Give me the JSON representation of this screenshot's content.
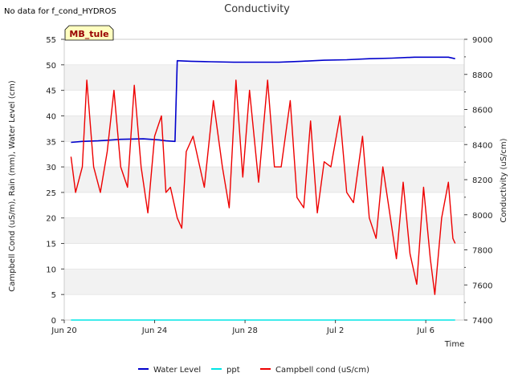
{
  "note": "No data for f_cond_HYDROS",
  "colors": {
    "band": "#f2f2f2",
    "grid": "#dddddd",
    "water_level": "#0000cc",
    "ppt": "#00e5e5",
    "campbell": "#ee0000",
    "badge_fill": "#ffffc0",
    "badge_text": "#990000"
  },
  "chart_data": {
    "type": "line",
    "title": "Conductivity",
    "badge": "MB_tule",
    "xlabel": "Time",
    "ylabel_left": "Campbell Cond (uS/m), Rain (mm), Water Level (cm)",
    "ylabel_right": "Conductivity (uS/cm)",
    "x_unit": "days since Jun 20",
    "xlim": [
      0,
      17.7
    ],
    "ylim_left": [
      0,
      55
    ],
    "ylim_right": [
      7400,
      9000
    ],
    "x_ticks": [
      {
        "value": 0,
        "label": "Jun 20"
      },
      {
        "value": 4,
        "label": "Jun 24"
      },
      {
        "value": 8,
        "label": "Jun 28"
      },
      {
        "value": 12,
        "label": "Jul 2"
      },
      {
        "value": 16,
        "label": "Jul 6"
      }
    ],
    "y_ticks_left": [
      0,
      5,
      10,
      15,
      20,
      25,
      30,
      35,
      40,
      45,
      50,
      55
    ],
    "y_ticks_right": [
      7400,
      7600,
      7800,
      8000,
      8200,
      8400,
      8600,
      8800,
      9000
    ],
    "series": [
      {
        "name": "Water Level",
        "axis": "left",
        "x": [
          0.3,
          0.8,
          1.5,
          2.5,
          3.5,
          4.2,
          4.5,
          4.9,
          5.0,
          5.6,
          6.5,
          7.5,
          8.5,
          9.5,
          10.5,
          11.5,
          12.5,
          13.5,
          14.5,
          15.5,
          16.3,
          17.0,
          17.3
        ],
        "values": [
          34.8,
          35.0,
          35.1,
          35.4,
          35.5,
          35.3,
          35.1,
          35.0,
          50.8,
          50.7,
          50.6,
          50.5,
          50.5,
          50.5,
          50.7,
          50.9,
          51.0,
          51.2,
          51.3,
          51.5,
          51.5,
          51.5,
          51.2
        ]
      },
      {
        "name": "ppt",
        "axis": "left",
        "x": [
          0.3,
          17.3
        ],
        "values": [
          0,
          0
        ]
      },
      {
        "name": "Campbell cond (uS/cm)",
        "axis": "left",
        "x": [
          0.3,
          0.5,
          0.8,
          1.0,
          1.3,
          1.6,
          1.9,
          2.2,
          2.5,
          2.8,
          3.1,
          3.4,
          3.7,
          4.0,
          4.3,
          4.5,
          4.7,
          5.0,
          5.2,
          5.4,
          5.7,
          6.0,
          6.2,
          6.6,
          7.0,
          7.3,
          7.6,
          7.9,
          8.2,
          8.6,
          9.0,
          9.3,
          9.6,
          10.0,
          10.3,
          10.6,
          10.9,
          11.2,
          11.5,
          11.8,
          12.2,
          12.5,
          12.8,
          13.2,
          13.5,
          13.8,
          14.1,
          14.4,
          14.7,
          15.0,
          15.3,
          15.6,
          15.9,
          16.2,
          16.4,
          16.7,
          17.0,
          17.2,
          17.3
        ],
        "values": [
          32,
          25,
          30,
          47,
          30,
          25,
          33,
          45,
          30,
          26,
          46,
          30,
          21,
          36,
          40,
          25,
          26,
          20,
          18,
          33,
          36,
          30,
          26,
          43,
          30,
          22,
          47,
          28,
          45,
          27,
          47,
          30,
          30,
          43,
          24,
          22,
          39,
          21,
          31,
          30,
          40,
          25,
          23,
          36,
          20,
          16,
          30,
          21,
          12,
          27,
          13,
          7,
          26,
          12,
          5,
          20,
          27,
          16,
          15
        ]
      }
    ],
    "legend": {
      "position": "bottom",
      "entries": [
        "Water Level",
        "ppt",
        "Campbell cond (uS/cm)"
      ]
    }
  }
}
